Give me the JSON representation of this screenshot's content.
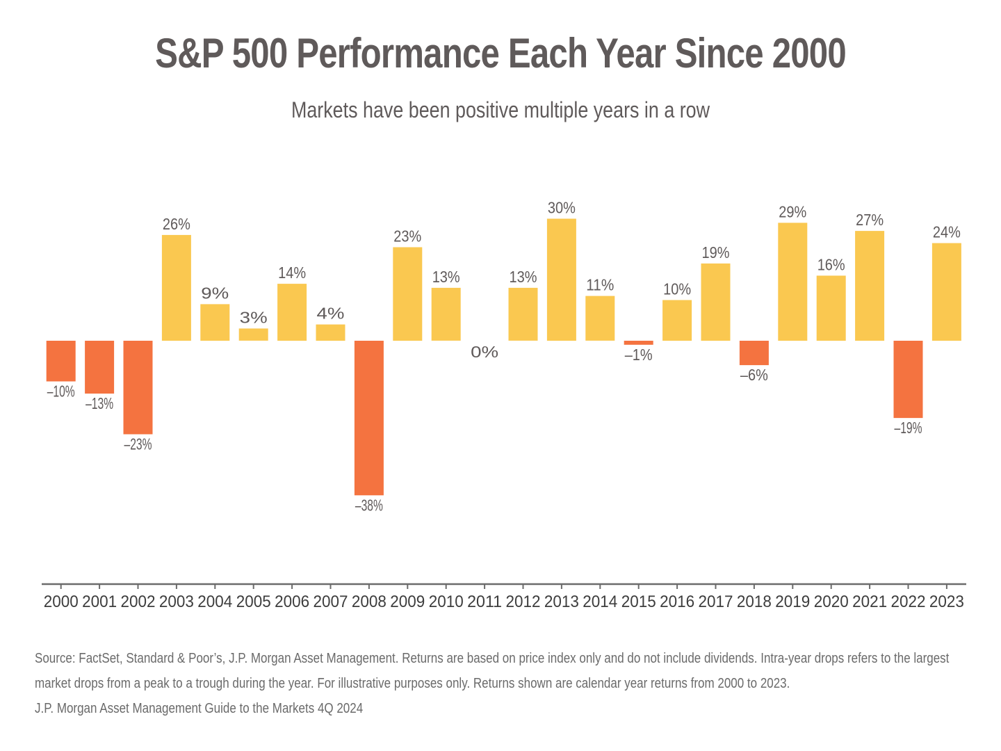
{
  "chart_data": {
    "type": "bar",
    "title": "S&P 500 Performance Each Year Since 2000",
    "subtitle": "Markets have been positive multiple years in a row",
    "xlabel": "",
    "ylabel": "",
    "ylim": [
      -60,
      36
    ],
    "grid": false,
    "legend": "none",
    "categories": [
      "2000",
      "2001",
      "2002",
      "2003",
      "2004",
      "2005",
      "2006",
      "2007",
      "2008",
      "2009",
      "2010",
      "2011",
      "2012",
      "2013",
      "2014",
      "2015",
      "2016",
      "2017",
      "2018",
      "2019",
      "2020",
      "2021",
      "2022",
      "2023"
    ],
    "values": [
      -10,
      -13,
      -23,
      26,
      9,
      3,
      14,
      4,
      -38,
      23,
      13,
      0,
      13,
      30,
      11,
      -1,
      10,
      19,
      -6,
      29,
      16,
      27,
      -19,
      24
    ],
    "data_labels": [
      "–10%",
      "–13%",
      "–23%",
      "26%",
      "9%",
      "3%",
      "14%",
      "4%",
      "–38%",
      "23%",
      "13%",
      "0%",
      "13%",
      "30%",
      "11%",
      "–1%",
      "10%",
      "19%",
      "–6%",
      "29%",
      "16%",
      "27%",
      "–19%",
      "24%"
    ],
    "colors": {
      "positive": "#FAC850",
      "negative": "#F47340",
      "text": "#5f5a5a",
      "axis": "#6b6b6b"
    }
  },
  "footnote": {
    "source_line_1": "Source: FactSet, Standard & Poor’s, J.P. Morgan Asset Management. Returns are based on price index only and do not include dividends. Intra-year drops refers to the largest",
    "source_line_2": "market drops from a peak to a trough during the year. For illustrative purposes only. Returns shown are calendar year returns from 2000 to 2023.",
    "credit": "J.P. Morgan Asset Management Guide to the Markets 4Q 2024"
  }
}
